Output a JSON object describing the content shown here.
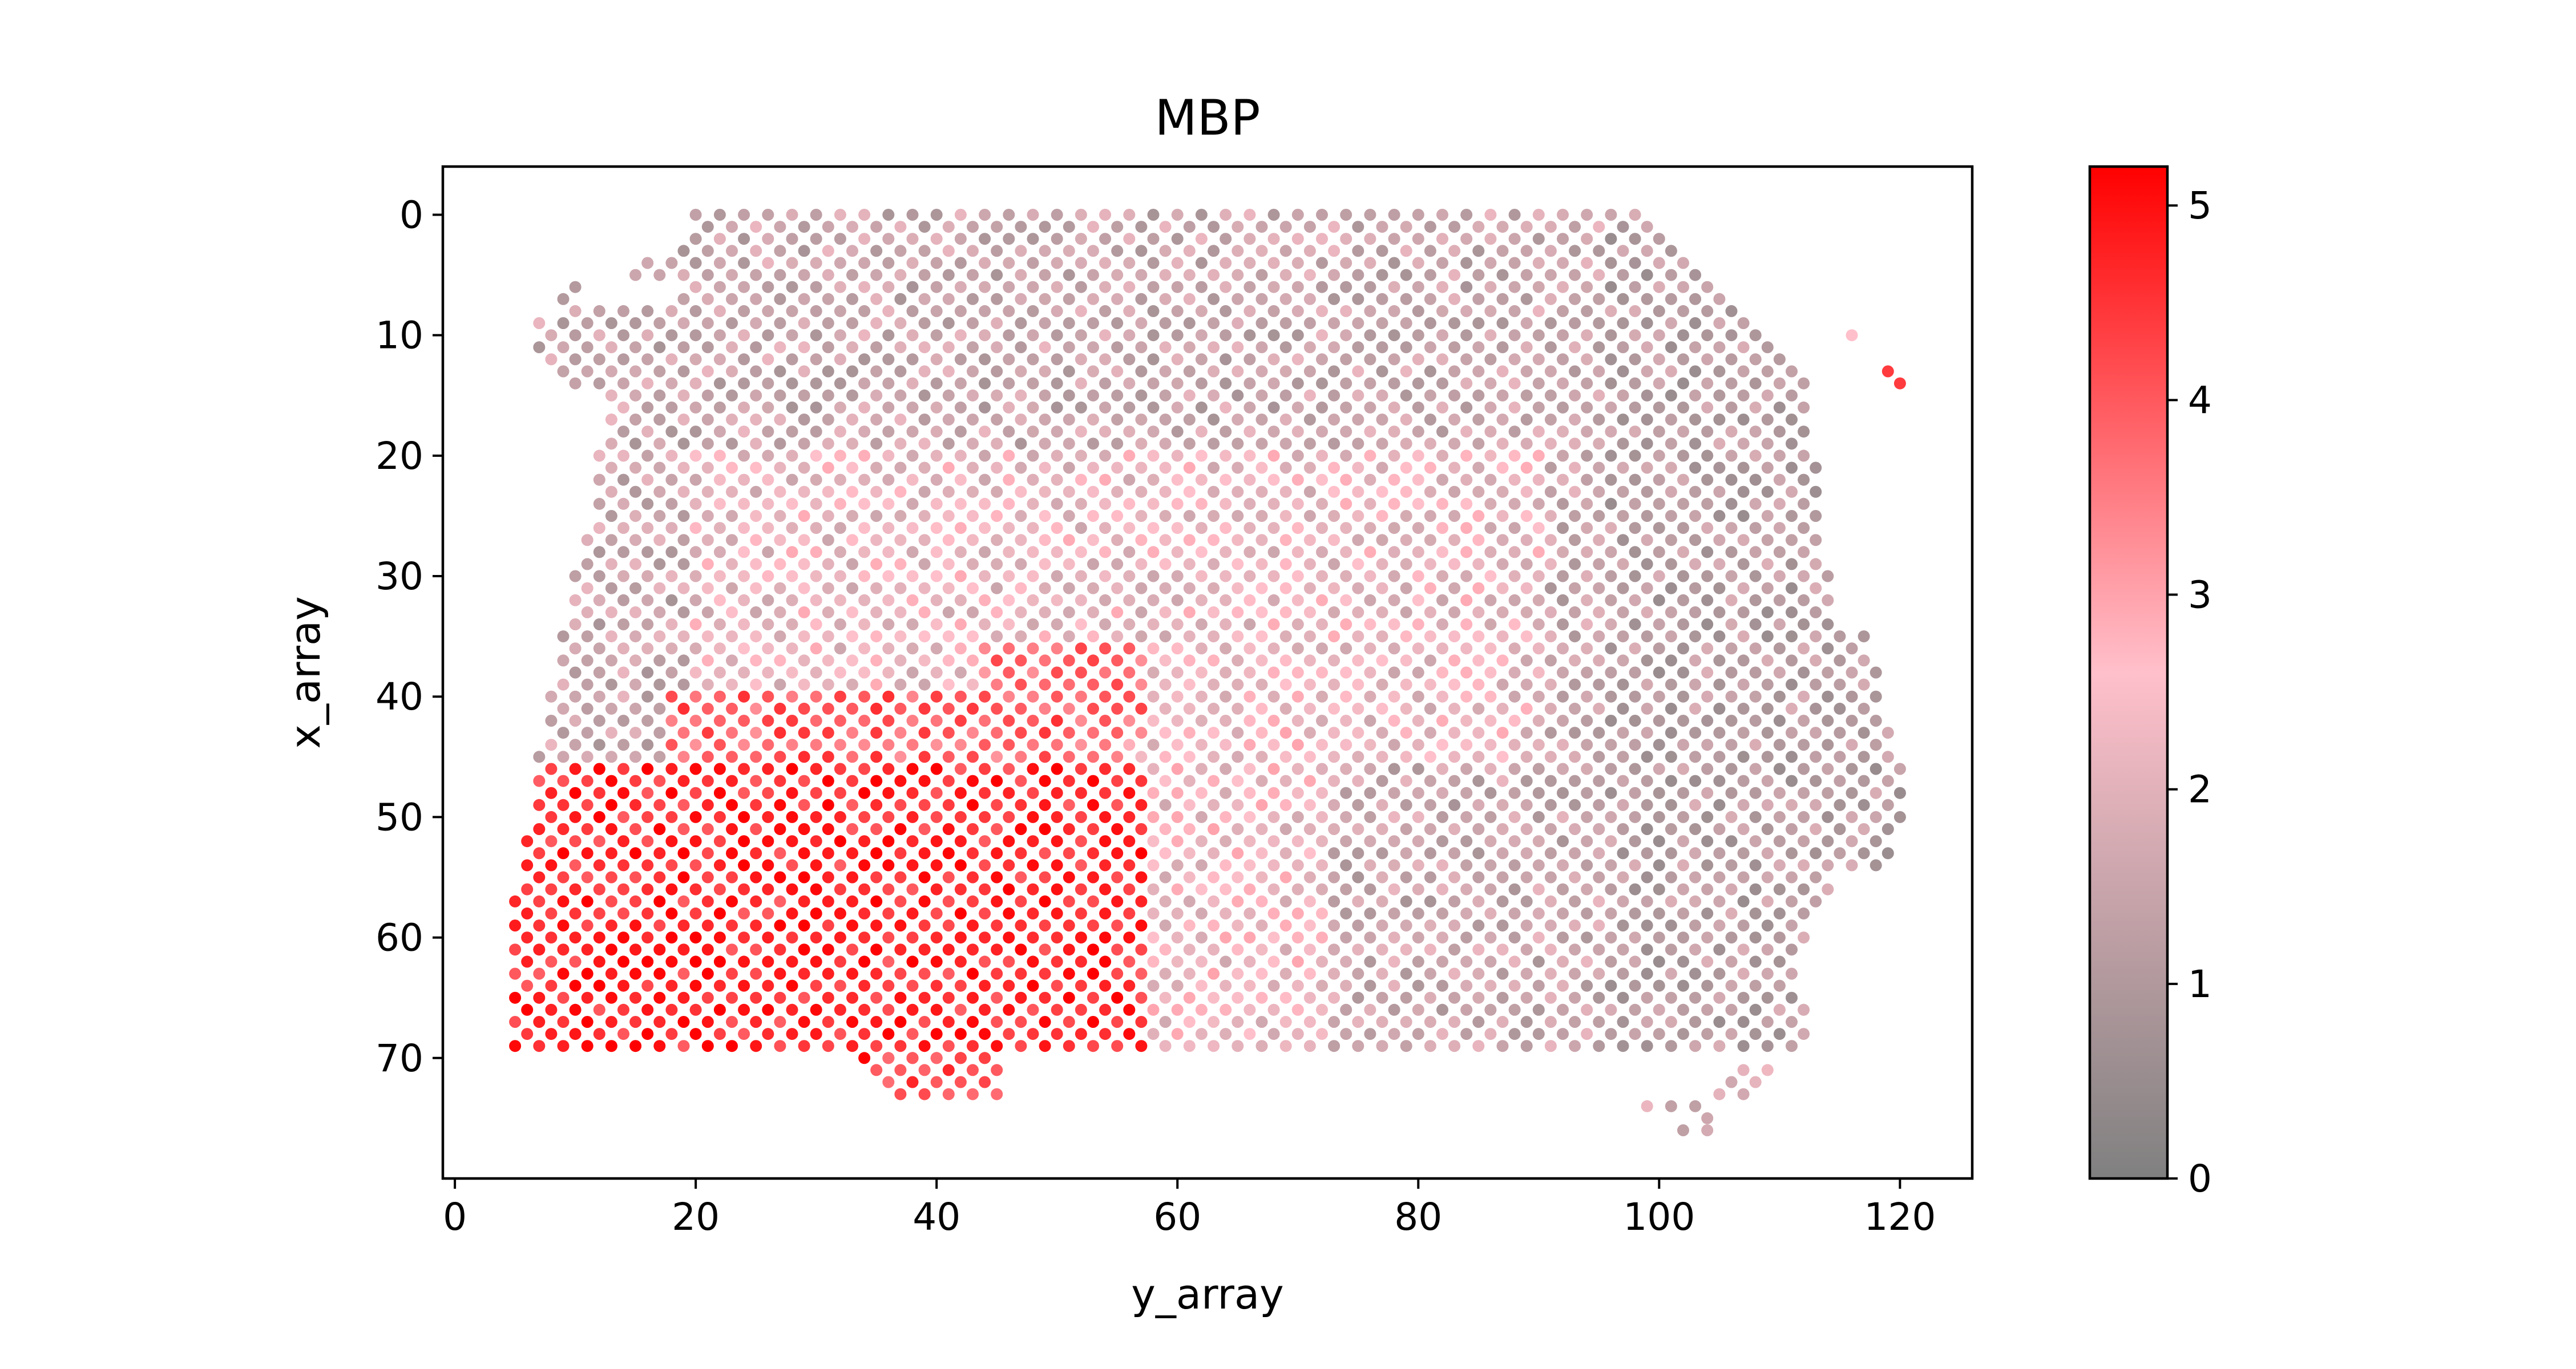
{
  "chart_data": {
    "type": "scatter",
    "title": "MBP",
    "xlabel": "y_array",
    "ylabel": "x_array",
    "xlim": [
      -1,
      126
    ],
    "ylim": [
      80,
      -4
    ],
    "y_inverted": true,
    "xticks": [
      0,
      20,
      40,
      60,
      80,
      100,
      120
    ],
    "yticks": [
      0,
      10,
      20,
      30,
      40,
      50,
      60,
      70
    ],
    "grid": false,
    "legend": "none",
    "colorbar": {
      "min": 0,
      "max": 5.2,
      "ticks": [
        0,
        1,
        2,
        3,
        4,
        5
      ],
      "colors": [
        "#808080",
        "#ffc0cb",
        "#ff0000"
      ],
      "stops": [
        0,
        0.5,
        1
      ]
    },
    "series": [
      {
        "description_points": "Visium-style hexagonal spot grid: x_array = row (0 top to 76 bottom), y_array = column; each spot colored by MBP expression",
        "regions": [
          {
            "y_range": [
              6,
              118
            ],
            "x_range": [
              0,
              36
            ],
            "value_approx": 1.6
          },
          {
            "y_range": [
              60,
              118
            ],
            "x_range": [
              36,
              68
            ],
            "value_approx": 1.8
          },
          {
            "y_range": [
              5,
              58
            ],
            "x_range": [
              46,
              70
            ],
            "value_approx": 4.6
          },
          {
            "y_range": [
              20,
              56
            ],
            "x_range": [
              40,
              48
            ],
            "value_approx": 3.8
          },
          {
            "y_range": [
              34,
              46
            ],
            "x_range": [
              70,
              74
            ],
            "value_approx": 4.2
          }
        ],
        "outliers": [
          {
            "y": 116,
            "x": 10,
            "value": 2.6
          },
          {
            "y": 119,
            "x": 13,
            "value": 4.4
          },
          {
            "y": 120,
            "x": 14,
            "value": 4.4
          }
        ]
      }
    ]
  }
}
